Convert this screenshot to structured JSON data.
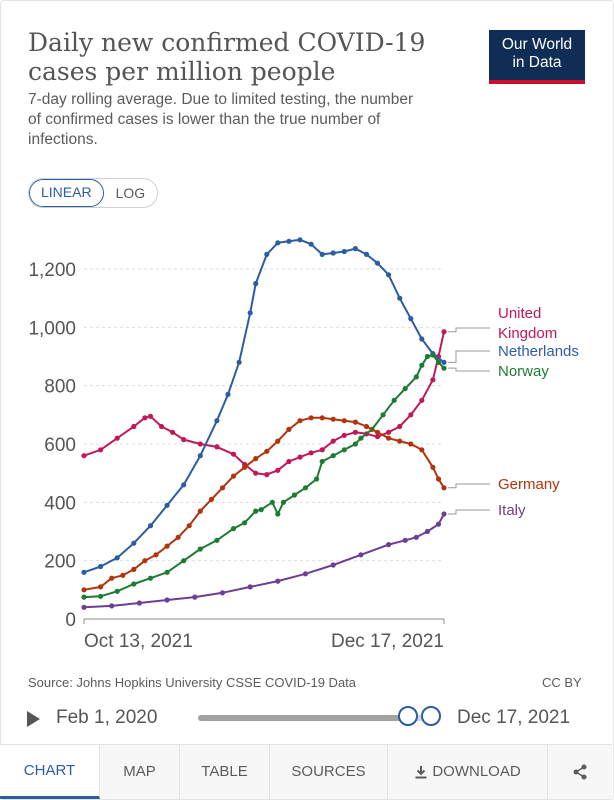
{
  "header": {
    "title": "Daily new confirmed COVID-19 cases per million people",
    "subtitle": "7-day rolling average. Due to limited testing, the number of confirmed cases is lower than the true number of infections.",
    "logo_line1": "Our World",
    "logo_line2": "in Data"
  },
  "scale_toggle": {
    "linear_label": "LINEAR",
    "log_label": "LOG",
    "selected": "LINEAR"
  },
  "chart_data": {
    "type": "line",
    "title": "Daily new confirmed COVID-19 cases per million people",
    "xlabel": "",
    "ylabel": "",
    "x_start_label": "Oct 13, 2021",
    "x_end_label": "Dec 17, 2021",
    "x_range_days": [
      0,
      65
    ],
    "ylim": [
      0,
      1300
    ],
    "y_ticks": [
      0,
      200,
      400,
      600,
      800,
      1000,
      1200
    ],
    "y_tick_labels": [
      "0",
      "200",
      "400",
      "600",
      "800",
      "1,000",
      "1,200"
    ],
    "grid": true,
    "series": [
      {
        "name": "United Kingdom",
        "label_lines": [
          "United",
          "Kingdom"
        ],
        "color": "#c2185b",
        "points": [
          [
            0,
            560
          ],
          [
            3,
            580
          ],
          [
            6,
            620
          ],
          [
            9,
            660
          ],
          [
            11,
            690
          ],
          [
            12,
            695
          ],
          [
            14,
            660
          ],
          [
            16,
            640
          ],
          [
            18,
            615
          ],
          [
            21,
            600
          ],
          [
            24,
            590
          ],
          [
            27,
            565
          ],
          [
            29,
            530
          ],
          [
            31,
            500
          ],
          [
            33,
            495
          ],
          [
            35,
            510
          ],
          [
            37,
            540
          ],
          [
            39,
            555
          ],
          [
            41,
            570
          ],
          [
            43,
            580
          ],
          [
            45,
            610
          ],
          [
            47,
            630
          ],
          [
            49,
            640
          ],
          [
            51,
            635
          ],
          [
            53,
            625
          ],
          [
            55,
            640
          ],
          [
            57,
            660
          ],
          [
            59,
            700
          ],
          [
            61,
            750
          ],
          [
            63,
            820
          ],
          [
            64,
            900
          ],
          [
            65,
            985
          ]
        ]
      },
      {
        "name": "Netherlands",
        "label_lines": [
          "Netherlands"
        ],
        "color": "#2c5da4",
        "points": [
          [
            0,
            160
          ],
          [
            3,
            180
          ],
          [
            6,
            210
          ],
          [
            9,
            260
          ],
          [
            12,
            320
          ],
          [
            15,
            390
          ],
          [
            18,
            460
          ],
          [
            21,
            560
          ],
          [
            24,
            680
          ],
          [
            26,
            770
          ],
          [
            28,
            880
          ],
          [
            30,
            1050
          ],
          [
            31,
            1150
          ],
          [
            33,
            1250
          ],
          [
            35,
            1290
          ],
          [
            37,
            1295
          ],
          [
            39,
            1300
          ],
          [
            41,
            1285
          ],
          [
            43,
            1250
          ],
          [
            45,
            1255
          ],
          [
            47,
            1260
          ],
          [
            49,
            1270
          ],
          [
            51,
            1250
          ],
          [
            53,
            1220
          ],
          [
            55,
            1180
          ],
          [
            57,
            1100
          ],
          [
            59,
            1030
          ],
          [
            61,
            960
          ],
          [
            63,
            910
          ],
          [
            65,
            880
          ]
        ]
      },
      {
        "name": "Norway",
        "label_lines": [
          "Norway"
        ],
        "color": "#1e7b34",
        "points": [
          [
            0,
            75
          ],
          [
            3,
            78
          ],
          [
            6,
            95
          ],
          [
            9,
            120
          ],
          [
            12,
            140
          ],
          [
            15,
            160
          ],
          [
            18,
            200
          ],
          [
            21,
            240
          ],
          [
            24,
            270
          ],
          [
            27,
            310
          ],
          [
            29,
            330
          ],
          [
            31,
            370
          ],
          [
            32,
            375
          ],
          [
            34,
            400
          ],
          [
            35,
            360
          ],
          [
            36,
            400
          ],
          [
            38,
            425
          ],
          [
            40,
            450
          ],
          [
            42,
            480
          ],
          [
            43,
            540
          ],
          [
            45,
            560
          ],
          [
            47,
            580
          ],
          [
            49,
            600
          ],
          [
            50,
            620
          ],
          [
            52,
            650
          ],
          [
            54,
            700
          ],
          [
            56,
            750
          ],
          [
            58,
            790
          ],
          [
            60,
            830
          ],
          [
            61,
            870
          ],
          [
            62,
            900
          ],
          [
            63,
            905
          ],
          [
            64,
            880
          ],
          [
            65,
            860
          ]
        ]
      },
      {
        "name": "Germany",
        "label_lines": [
          "Germany"
        ],
        "color": "#b0350e",
        "points": [
          [
            0,
            100
          ],
          [
            3,
            110
          ],
          [
            5,
            140
          ],
          [
            7,
            150
          ],
          [
            9,
            170
          ],
          [
            11,
            200
          ],
          [
            13,
            220
          ],
          [
            15,
            250
          ],
          [
            17,
            280
          ],
          [
            19,
            320
          ],
          [
            21,
            370
          ],
          [
            23,
            410
          ],
          [
            25,
            450
          ],
          [
            27,
            490
          ],
          [
            29,
            520
          ],
          [
            31,
            550
          ],
          [
            33,
            575
          ],
          [
            35,
            610
          ],
          [
            37,
            650
          ],
          [
            39,
            680
          ],
          [
            41,
            690
          ],
          [
            43,
            690
          ],
          [
            45,
            685
          ],
          [
            47,
            680
          ],
          [
            49,
            675
          ],
          [
            51,
            660
          ],
          [
            53,
            640
          ],
          [
            55,
            620
          ],
          [
            57,
            610
          ],
          [
            59,
            600
          ],
          [
            61,
            580
          ],
          [
            63,
            520
          ],
          [
            64,
            480
          ],
          [
            65,
            450
          ]
        ]
      },
      {
        "name": "Italy",
        "label_lines": [
          "Italy"
        ],
        "color": "#6d3e91",
        "points": [
          [
            0,
            40
          ],
          [
            5,
            45
          ],
          [
            10,
            55
          ],
          [
            15,
            65
          ],
          [
            20,
            75
          ],
          [
            25,
            90
          ],
          [
            30,
            110
          ],
          [
            35,
            130
          ],
          [
            40,
            155
          ],
          [
            45,
            185
          ],
          [
            50,
            220
          ],
          [
            55,
            255
          ],
          [
            58,
            270
          ],
          [
            60,
            280
          ],
          [
            62,
            300
          ],
          [
            64,
            325
          ],
          [
            65,
            360
          ]
        ]
      }
    ]
  },
  "footer": {
    "source": "Source: Johns Hopkins University CSSE COVID-19 Data",
    "license": "CC BY"
  },
  "timeline": {
    "start_label": "Feb 1, 2020",
    "end_label": "Dec 17, 2021"
  },
  "tabs": [
    {
      "label": "CHART"
    },
    {
      "label": "MAP"
    },
    {
      "label": "TABLE"
    },
    {
      "label": "SOURCES"
    },
    {
      "label": "DOWNLOAD"
    },
    {
      "label": ""
    }
  ],
  "icons": {
    "download": "download-icon",
    "share": "share-icon",
    "play": "play-icon"
  }
}
